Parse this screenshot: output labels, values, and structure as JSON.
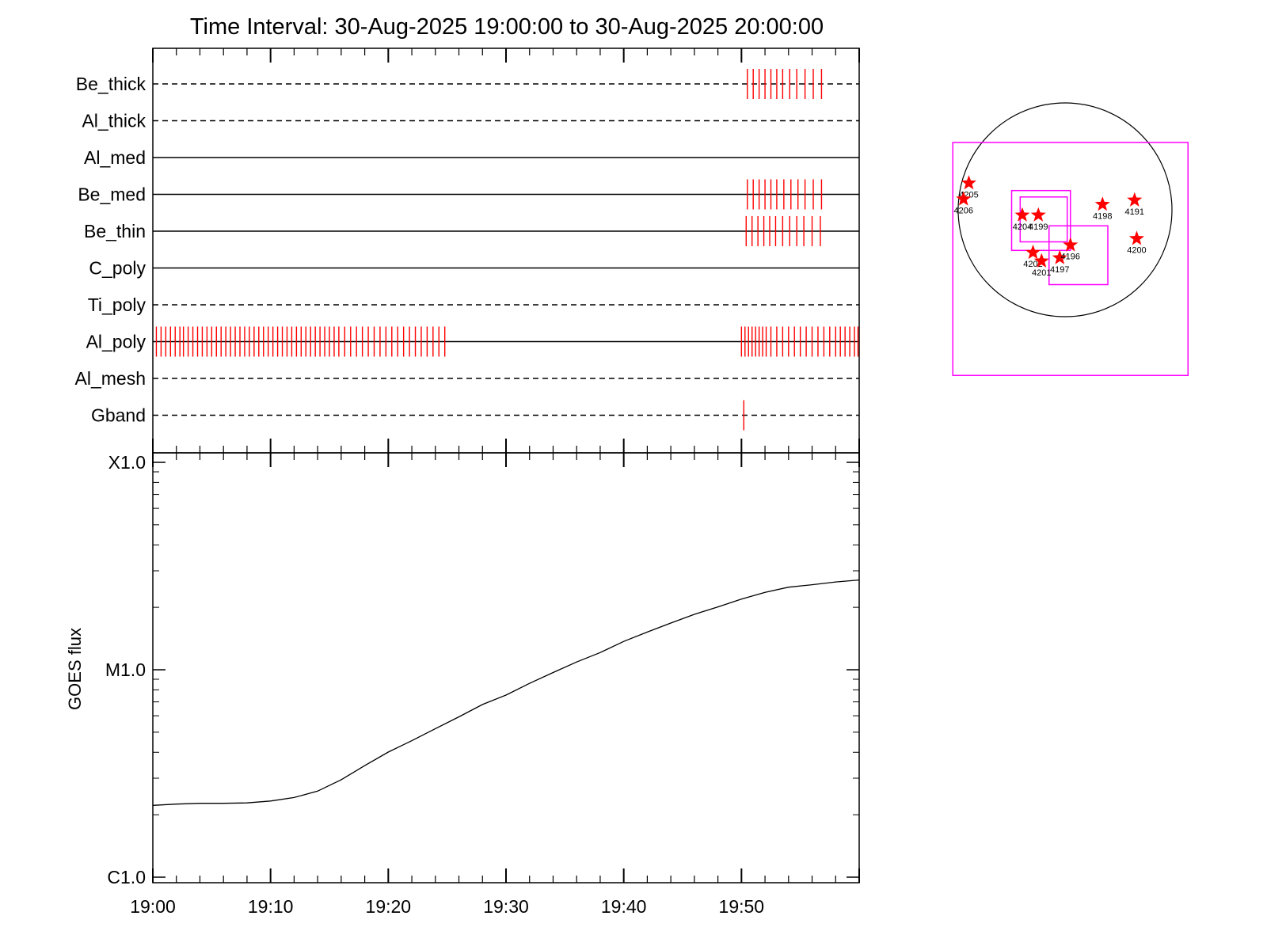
{
  "chart_data": [
    {
      "type": "scatter",
      "title": "Time Interval: 30-Aug-2025 19:00:00 to 30-Aug-2025 20:00:00",
      "xlim": [
        "19:00",
        "20:00"
      ],
      "xunits": "minutes after 19:00",
      "grid": false,
      "colors": {
        "exposure": "#ff0000",
        "axis": "#000000"
      },
      "channels": [
        {
          "name": "Be_thick",
          "line": "dashed",
          "exposures": [
            50.5,
            51.0,
            51.5,
            52.0,
            52.5,
            53.0,
            53.5,
            54.1,
            54.7,
            55.4,
            56.1,
            56.8
          ]
        },
        {
          "name": "Al_thick",
          "line": "dashed",
          "exposures": []
        },
        {
          "name": "Al_med",
          "line": "solid",
          "exposures": []
        },
        {
          "name": "Be_med",
          "line": "solid",
          "exposures": [
            50.5,
            51.0,
            51.5,
            52.0,
            52.5,
            53.0,
            53.6,
            54.2,
            54.8,
            55.4,
            56.1,
            56.8
          ]
        },
        {
          "name": "Be_thin",
          "line": "solid",
          "exposures": [
            50.4,
            50.9,
            51.4,
            51.9,
            52.4,
            52.9,
            53.5,
            54.1,
            54.7,
            55.3,
            56.0,
            56.7
          ]
        },
        {
          "name": "C_poly",
          "line": "solid",
          "exposures": []
        },
        {
          "name": "Ti_poly",
          "line": "dashed",
          "exposures": []
        },
        {
          "name": "Al_poly",
          "line": "solid",
          "exposures": [
            0.3,
            0.7,
            1.1,
            1.5,
            1.9,
            2.3,
            2.6,
            3.0,
            3.4,
            3.8,
            4.2,
            4.6,
            5.0,
            5.4,
            5.8,
            6.2,
            6.6,
            7.0,
            7.4,
            7.8,
            8.2,
            8.6,
            9.0,
            9.4,
            9.8,
            10.2,
            10.6,
            11.0,
            11.4,
            11.8,
            12.2,
            12.6,
            13.0,
            13.4,
            13.8,
            14.2,
            14.6,
            15.0,
            15.4,
            15.8,
            16.3,
            16.8,
            17.3,
            17.8,
            18.3,
            18.8,
            19.3,
            19.8,
            20.3,
            20.8,
            21.3,
            21.8,
            22.3,
            22.8,
            23.3,
            23.8,
            24.3,
            24.8,
            50.0,
            50.3,
            50.6,
            50.9,
            51.2,
            51.5,
            51.8,
            52.1,
            52.5,
            53.0,
            53.5,
            54.0,
            54.5,
            55.0,
            55.5,
            56.0,
            56.5,
            57.0,
            57.5,
            58.0,
            58.4,
            58.8,
            59.2,
            59.6,
            59.9
          ]
        },
        {
          "name": "Al_mesh",
          "line": "dashed",
          "exposures": []
        },
        {
          "name": "Gband",
          "line": "dashed",
          "exposures": [
            50.2
          ]
        }
      ]
    },
    {
      "type": "line",
      "ylabel": "GOES flux",
      "yscale": "log",
      "ylim": [
        1e-06,
        0.0001
      ],
      "yticks": [
        {
          "value": 0.0001,
          "label": "X1.0"
        },
        {
          "value": 1e-05,
          "label": "M1.0"
        },
        {
          "value": 1e-06,
          "label": "C1.0"
        }
      ],
      "xticks": [
        "19:00",
        "19:10",
        "19:20",
        "19:30",
        "19:40",
        "19:50"
      ],
      "xlim": [
        "19:00",
        "20:00"
      ],
      "series": [
        {
          "color": "#000000",
          "x": [
            0,
            2,
            4,
            6,
            8,
            10,
            12,
            14,
            16,
            18,
            20,
            22,
            24,
            26,
            28,
            30,
            32,
            34,
            36,
            38,
            40,
            42,
            44,
            46,
            48,
            50,
            52,
            54,
            56,
            58,
            60
          ],
          "y": [
            2.22e-06,
            2.25e-06,
            2.27e-06,
            2.27e-06,
            2.28e-06,
            2.33e-06,
            2.42e-06,
            2.6e-06,
            2.95e-06,
            3.45e-06,
            4.01e-06,
            4.55e-06,
            5.2e-06,
            5.93e-06,
            6.8e-06,
            7.55e-06,
            8.6e-06,
            9.7e-06,
            1.09e-05,
            1.21e-05,
            1.37e-05,
            1.52e-05,
            1.68e-05,
            1.85e-05,
            2.01e-05,
            2.19e-05,
            2.36e-05,
            2.5e-05,
            2.57e-05,
            2.65e-05,
            2.71e-05
          ]
        }
      ]
    },
    {
      "type": "scatter",
      "colors": {
        "marker": "#ff0000",
        "fov": "#ff00ff",
        "limb": "#000000"
      },
      "units": "solar radii",
      "xlim": [
        -1.2,
        1.2
      ],
      "ylim": [
        -1.6,
        1.0
      ],
      "regions": [
        {
          "label": "4205",
          "x": -0.9,
          "y": 0.25
        },
        {
          "label": "4206",
          "x": -0.95,
          "y": 0.1
        },
        {
          "label": "4204",
          "x": -0.4,
          "y": -0.05
        },
        {
          "label": "4199",
          "x": -0.25,
          "y": -0.05
        },
        {
          "label": "4198",
          "x": 0.35,
          "y": 0.05
        },
        {
          "label": "4191",
          "x": 0.65,
          "y": 0.09
        },
        {
          "label": "4202",
          "x": -0.3,
          "y": -0.4
        },
        {
          "label": "4201",
          "x": -0.22,
          "y": -0.48
        },
        {
          "label": "4197",
          "x": -0.05,
          "y": -0.45
        },
        {
          "label": "4196",
          "x": 0.05,
          "y": -0.33
        },
        {
          "label": "4200",
          "x": 0.67,
          "y": -0.27
        }
      ],
      "fovs": [
        {
          "x0": -1.05,
          "x1": 1.15,
          "y0": -1.55,
          "y1": 0.63
        },
        {
          "x0": -0.5,
          "x1": 0.05,
          "y0": -0.38,
          "y1": 0.18
        },
        {
          "x0": -0.42,
          "x1": 0.02,
          "y0": -0.3,
          "y1": 0.12
        },
        {
          "x0": -0.15,
          "x1": 0.4,
          "y0": -0.7,
          "y1": -0.15
        }
      ]
    }
  ]
}
